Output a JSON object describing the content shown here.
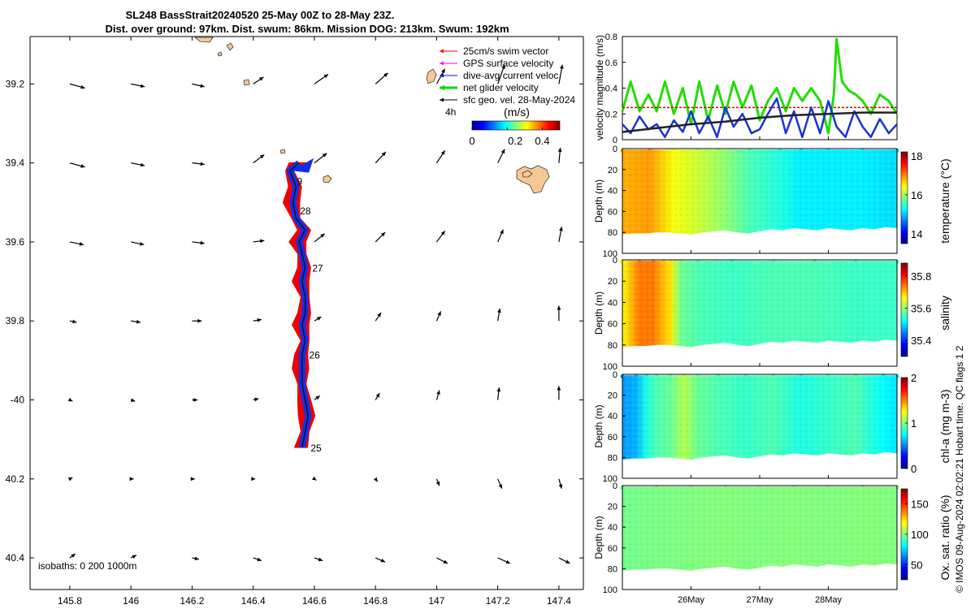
{
  "header": {
    "line1": "SL248 BassStrait20240520 25-May 00Z to 28-May 23Z.",
    "line2": "Dist. over ground: 97km. Dist. swum: 86km. Mission DOG: 213km. Swum: 192km"
  },
  "chart_data": [
    {
      "type": "map",
      "x_ticks": [
        145.8,
        146,
        146.2,
        146.4,
        146.6,
        146.8,
        147,
        147.2,
        147.4
      ],
      "x_tick_labels": [
        "145.8",
        "146",
        "146.2",
        "146.4",
        "146.6",
        "146.8",
        "147",
        "147.2",
        "147.4"
      ],
      "xlim": [
        145.67,
        147.48
      ],
      "y_ticks": [
        -39.2,
        -39.4,
        -39.6,
        -39.8,
        -40.0,
        -40.2,
        -40.4
      ],
      "y_tick_labels": [
        "39.2",
        "39.4",
        "39.6",
        "39.8",
        "-40",
        "40.2",
        "40.4"
      ],
      "ylim": [
        -40.48,
        -39.08
      ],
      "legend": {
        "placement": "top-right",
        "items": [
          {
            "label": "25cm/s swim vector",
            "color": "#ff0000"
          },
          {
            "label": "GPS surface velocity",
            "color": "#ff00ff"
          },
          {
            "label": "dive-avg current veloc.",
            "color": "#0000ff"
          },
          {
            "label": "net glider velocity",
            "color": "#00dd00"
          },
          {
            "label": "sfc geo. vel. 28-May-2024",
            "color": "#000000"
          }
        ]
      },
      "colorbar": {
        "prefix": "4h",
        "title": "(m/s)",
        "ticks": [
          "0",
          "0.2",
          "0.4"
        ],
        "range": [
          0,
          0.5
        ]
      },
      "day_labels": [
        {
          "text": "25",
          "lon": 146.58,
          "lat": -40.12
        },
        {
          "text": "26",
          "lon": 146.575,
          "lat": -39.885
        },
        {
          "text": "27",
          "lon": 146.585,
          "lat": -39.665
        },
        {
          "text": "28",
          "lon": 146.545,
          "lat": -39.52
        },
        {
          "text": "9",
          "lon": 146.535,
          "lat": -39.445
        }
      ],
      "isobaths_label": "isobaths: 0   200  1000m",
      "track": [
        [
          146.56,
          -40.12
        ],
        [
          146.57,
          -40.08
        ],
        [
          146.58,
          -40.04
        ],
        [
          146.57,
          -40.0
        ],
        [
          146.56,
          -39.96
        ],
        [
          146.56,
          -39.92
        ],
        [
          146.56,
          -39.885
        ],
        [
          146.57,
          -39.85
        ],
        [
          146.56,
          -39.81
        ],
        [
          146.57,
          -39.78
        ],
        [
          146.57,
          -39.74
        ],
        [
          146.56,
          -39.7
        ],
        [
          146.57,
          -39.665
        ],
        [
          146.56,
          -39.63
        ],
        [
          146.55,
          -39.6
        ],
        [
          146.57,
          -39.57
        ],
        [
          146.54,
          -39.54
        ],
        [
          146.53,
          -39.5
        ],
        [
          146.54,
          -39.46
        ],
        [
          146.52,
          -39.42
        ],
        [
          146.55,
          -39.4
        ]
      ],
      "vectors": {
        "lons": [
          145.8,
          146.0,
          146.2,
          146.4,
          146.6,
          146.8,
          147.0,
          147.2,
          147.4
        ],
        "lats": [
          -39.2,
          -39.4,
          -39.6,
          -39.8,
          -40.0,
          -40.2,
          -40.4
        ],
        "u": [
          [
            0.22,
            0.2,
            0.18,
            0.15,
            0.2,
            0.18,
            0.12,
            0.1,
            0.05
          ],
          [
            0.22,
            0.2,
            0.18,
            0.16,
            0.18,
            0.15,
            0.12,
            0.1,
            0.02
          ],
          [
            0.2,
            0.19,
            0.18,
            0.16,
            0.15,
            0.14,
            0.12,
            0.08,
            0.04
          ],
          [
            0.1,
            0.14,
            0.14,
            0.12,
            0.1,
            0.08,
            0.06,
            0.03,
            0.0
          ],
          [
            0.04,
            0.06,
            0.08,
            0.08,
            0.08,
            0.06,
            0.04,
            0.02,
            0.0
          ],
          [
            0.04,
            0.04,
            0.04,
            0.03,
            0.03,
            0.03,
            0.04,
            0.06,
            0.04
          ],
          [
            0.08,
            0.08,
            0.1,
            0.12,
            0.12,
            0.14,
            0.16,
            0.18,
            0.16
          ]
        ],
        "v": [
          [
            -0.06,
            -0.04,
            -0.04,
            0.1,
            0.14,
            0.16,
            0.22,
            0.28,
            0.28
          ],
          [
            -0.06,
            -0.04,
            -0.02,
            0.12,
            0.14,
            0.16,
            0.18,
            0.2,
            0.22
          ],
          [
            -0.04,
            -0.04,
            -0.02,
            0.02,
            0.12,
            0.14,
            0.16,
            0.18,
            0.22
          ],
          [
            -0.02,
            -0.02,
            0.0,
            0.02,
            0.06,
            0.12,
            0.14,
            0.18,
            0.22
          ],
          [
            -0.02,
            -0.02,
            0.0,
            0.02,
            0.06,
            0.1,
            0.14,
            0.18,
            0.2
          ],
          [
            0.02,
            0.0,
            0.0,
            0.0,
            -0.02,
            -0.04,
            -0.1,
            -0.14,
            -0.14
          ],
          [
            0.06,
            0.04,
            -0.02,
            -0.04,
            -0.04,
            -0.06,
            -0.08,
            -0.08,
            -0.08
          ]
        ]
      }
    },
    {
      "type": "line",
      "ylabel": "velocity magnitude (m/s)",
      "ylim": [
        0,
        0.8
      ],
      "y_ticks": [
        "0",
        "0.2",
        "0.4",
        "0.6",
        "0.8"
      ],
      "t_range_days": [
        0,
        4
      ],
      "series": [
        {
          "color": "#22dd00",
          "t": [
            0,
            0.12,
            0.25,
            0.38,
            0.5,
            0.62,
            0.75,
            0.88,
            1.0,
            1.12,
            1.25,
            1.38,
            1.5,
            1.62,
            1.75,
            1.88,
            2.0,
            2.12,
            2.25,
            2.38,
            2.5,
            2.62,
            2.75,
            2.88,
            3.0,
            3.08,
            3.12,
            3.2,
            3.3,
            3.4,
            3.5,
            3.62,
            3.75,
            3.88,
            4.0
          ],
          "values": [
            0.22,
            0.45,
            0.22,
            0.35,
            0.22,
            0.45,
            0.2,
            0.4,
            0.12,
            0.45,
            0.15,
            0.42,
            0.2,
            0.45,
            0.25,
            0.42,
            0.15,
            0.3,
            0.4,
            0.22,
            0.4,
            0.3,
            0.4,
            0.3,
            0.05,
            0.35,
            0.78,
            0.45,
            0.38,
            0.35,
            0.3,
            0.2,
            0.35,
            0.3,
            0.2
          ]
        },
        {
          "color": "#d40000",
          "t": [
            0,
            4
          ],
          "values": [
            0.25,
            0.25
          ]
        },
        {
          "color": "#1a33d6",
          "t": [
            0,
            0.12,
            0.25,
            0.38,
            0.5,
            0.62,
            0.75,
            0.88,
            1.0,
            1.12,
            1.25,
            1.38,
            1.5,
            1.62,
            1.75,
            1.88,
            2.0,
            2.12,
            2.25,
            2.38,
            2.5,
            2.62,
            2.75,
            2.88,
            3.0,
            3.12,
            3.25,
            3.38,
            3.5,
            3.62,
            3.75,
            3.88,
            4.0
          ],
          "values": [
            0.12,
            0.05,
            0.18,
            0.08,
            0.12,
            0.02,
            0.15,
            0.06,
            0.22,
            0.05,
            0.18,
            0.02,
            0.25,
            0.1,
            0.2,
            0.05,
            0.08,
            0.2,
            0.32,
            0.05,
            0.22,
            0.02,
            0.25,
            0.05,
            0.3,
            0.1,
            0.02,
            0.22,
            0.1,
            0.02,
            0.16,
            0.05,
            0.12
          ]
        },
        {
          "color": "#222222",
          "t": [
            0,
            0.5,
            1.0,
            1.5,
            2.0,
            2.5,
            3.0,
            3.5,
            4.0
          ],
          "values": [
            0.06,
            0.09,
            0.12,
            0.14,
            0.17,
            0.19,
            0.2,
            0.21,
            0.21
          ]
        }
      ]
    },
    {
      "type": "heatmap",
      "variable": "temperature",
      "ylabel": "Depth (m)",
      "cblabel": "temperature (°C)",
      "cb_ticks": [
        14,
        16,
        18
      ],
      "cb_range": [
        13.5,
        18.2
      ],
      "y_ticks": [
        "0",
        "20",
        "40",
        "60",
        "80",
        "100"
      ],
      "depth_range": [
        0,
        100
      ],
      "bottom_depth": [
        82,
        81,
        81,
        80,
        80,
        81,
        82,
        80,
        79,
        78,
        80,
        81,
        79,
        77,
        78,
        76,
        77,
        78,
        76,
        77,
        78,
        76,
        77,
        75,
        76
      ],
      "profile_t": [
        0.0,
        0.4,
        0.75,
        1.1,
        1.4,
        1.85,
        2.3,
        2.6,
        3.0,
        3.5,
        4.0
      ],
      "profile_values": [
        16.8,
        16.9,
        16.4,
        16.2,
        16.0,
        15.6,
        15.4,
        15.2,
        15.2,
        15.2,
        15.1
      ],
      "gradient_stops": [
        {
          "t": 0.0,
          "value": 16.8
        },
        {
          "t": 0.4,
          "value": 16.9
        },
        {
          "t": 0.75,
          "value": 16.4
        },
        {
          "t": 1.1,
          "value": 16.2
        },
        {
          "t": 1.4,
          "value": 16.0
        },
        {
          "t": 1.85,
          "value": 15.6
        },
        {
          "t": 2.3,
          "value": 15.4
        },
        {
          "t": 2.6,
          "value": 15.2
        },
        {
          "t": 3.0,
          "value": 15.2
        },
        {
          "t": 3.5,
          "value": 15.2
        },
        {
          "t": 4.0,
          "value": 15.1
        }
      ]
    },
    {
      "type": "heatmap",
      "variable": "salinity",
      "ylabel": "Depth (m)",
      "cblabel": "salinity",
      "cb_ticks": [
        35.4,
        35.6,
        35.8
      ],
      "cb_range": [
        35.3,
        35.88
      ],
      "y_ticks": [
        "0",
        "20",
        "40",
        "60",
        "80",
        "100"
      ],
      "depth_range": [
        0,
        100
      ],
      "bottom_depth": [
        82,
        81,
        81,
        80,
        80,
        81,
        82,
        80,
        79,
        78,
        80,
        81,
        79,
        77,
        78,
        76,
        77,
        78,
        76,
        77,
        78,
        76,
        77,
        75,
        76
      ],
      "profile_t": [
        0.0,
        0.25,
        0.45,
        0.6,
        0.7,
        0.78,
        0.85,
        1.1,
        1.6,
        2.2,
        2.8,
        3.4,
        4.0
      ],
      "profile_values": [
        35.66,
        35.74,
        35.74,
        35.7,
        35.68,
        35.62,
        35.58,
        35.56,
        35.55,
        35.56,
        35.56,
        35.55,
        35.55
      ],
      "gradient_stops": [
        {
          "t": 0.0,
          "value": 35.66
        },
        {
          "t": 0.25,
          "value": 35.74
        },
        {
          "t": 0.45,
          "value": 35.74
        },
        {
          "t": 0.6,
          "value": 35.7
        },
        {
          "t": 0.7,
          "value": 35.68
        },
        {
          "t": 0.78,
          "value": 35.62
        },
        {
          "t": 0.85,
          "value": 35.58
        },
        {
          "t": 1.1,
          "value": 35.56
        },
        {
          "t": 1.6,
          "value": 35.55
        },
        {
          "t": 2.2,
          "value": 35.56
        },
        {
          "t": 2.8,
          "value": 35.56
        },
        {
          "t": 3.4,
          "value": 35.55
        },
        {
          "t": 4.0,
          "value": 35.55
        }
      ]
    },
    {
      "type": "heatmap",
      "variable": "chl-a",
      "ylabel": "Depth (m)",
      "cblabel": "chl-a (mg m-3)",
      "cb_ticks": [
        0,
        1,
        2
      ],
      "cb_range": [
        0,
        2
      ],
      "y_ticks": [
        "0",
        "20",
        "40",
        "60",
        "80",
        "100"
      ],
      "depth_range": [
        0,
        100
      ],
      "bottom_depth": [
        82,
        81,
        81,
        80,
        80,
        81,
        82,
        80,
        79,
        78,
        80,
        81,
        79,
        77,
        78,
        76,
        77,
        78,
        76,
        77,
        78,
        76,
        77,
        75,
        76
      ],
      "profile_t": [
        0.0,
        0.2,
        0.35,
        0.5,
        0.7,
        0.9,
        1.1,
        1.4,
        1.8,
        2.2,
        2.6,
        3.0,
        3.4,
        3.8,
        4.0
      ],
      "profile_values": [
        0.55,
        0.6,
        0.8,
        0.9,
        0.95,
        1.1,
        0.95,
        0.9,
        0.85,
        0.9,
        0.8,
        0.85,
        0.9,
        0.75,
        0.7
      ],
      "gradient_stops": [
        {
          "t": 0.0,
          "value": 0.55
        },
        {
          "t": 0.2,
          "value": 0.6
        },
        {
          "t": 0.35,
          "value": 0.8
        },
        {
          "t": 0.5,
          "value": 0.9
        },
        {
          "t": 0.7,
          "value": 0.95
        },
        {
          "t": 0.9,
          "value": 1.1
        },
        {
          "t": 1.1,
          "value": 0.95
        },
        {
          "t": 1.4,
          "value": 0.9
        },
        {
          "t": 1.8,
          "value": 0.85
        },
        {
          "t": 2.2,
          "value": 0.9
        },
        {
          "t": 2.6,
          "value": 0.8
        },
        {
          "t": 3.0,
          "value": 0.85
        },
        {
          "t": 3.4,
          "value": 0.9
        },
        {
          "t": 3.8,
          "value": 0.75
        },
        {
          "t": 4.0,
          "value": 0.7
        }
      ]
    },
    {
      "type": "heatmap",
      "variable": "oxygen",
      "ylabel": "Depth (m)",
      "cblabel": "Ox. sat. ratio (%)",
      "cb_ticks": [
        50,
        100,
        150
      ],
      "cb_range": [
        25,
        175
      ],
      "y_ticks": [
        "0",
        "20",
        "40",
        "60",
        "80",
        "100"
      ],
      "depth_range": [
        0,
        100
      ],
      "bottom_depth": [
        82,
        81,
        81,
        80,
        80,
        81,
        82,
        80,
        79,
        78,
        80,
        81,
        79,
        77,
        78,
        76,
        77,
        78,
        76,
        77,
        78,
        76,
        77,
        75,
        76
      ],
      "profile_t": [
        0.0,
        0.5,
        1.0,
        1.5,
        2.0,
        2.5,
        3.0,
        3.5,
        4.0
      ],
      "profile_values": [
        98,
        99,
        100,
        101,
        100,
        101,
        100,
        101,
        100
      ],
      "gradient_stops": [
        {
          "t": 0.0,
          "value": 98
        },
        {
          "t": 0.5,
          "value": 99
        },
        {
          "t": 1.0,
          "value": 100
        },
        {
          "t": 1.5,
          "value": 101
        },
        {
          "t": 2.0,
          "value": 100
        },
        {
          "t": 2.5,
          "value": 101
        },
        {
          "t": 3.0,
          "value": 100
        },
        {
          "t": 3.5,
          "value": 101
        },
        {
          "t": 4.0,
          "value": 100
        }
      ]
    }
  ],
  "time_axis": {
    "ticks": [
      {
        "label": "26May",
        "t": 1.0
      },
      {
        "label": "27May",
        "t": 2.0
      },
      {
        "label": "28May",
        "t": 3.0
      }
    ]
  },
  "footer": {
    "side_note": "© IMOS 09-Aug-2024 02:02:21 Hobart time. QC flags 1  2"
  },
  "colors": {
    "land": "#f6c896",
    "track_red": "#ee0000",
    "track_blue": "#1030ee",
    "arrow": "#000000"
  }
}
